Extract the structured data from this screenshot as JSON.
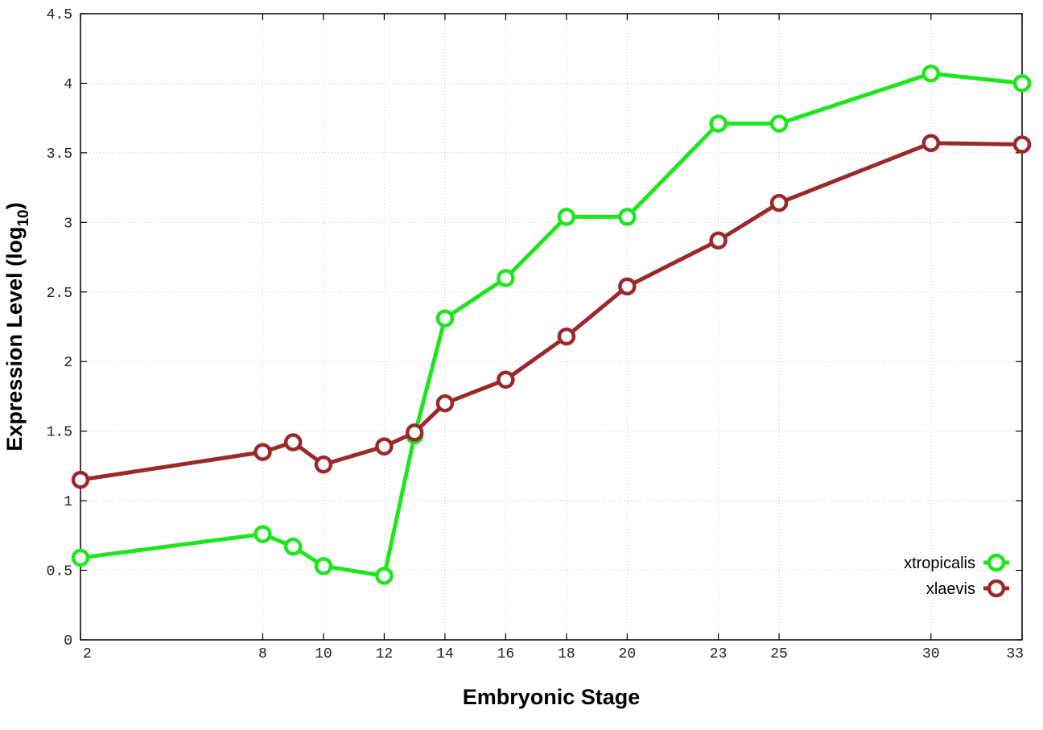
{
  "chart_data": {
    "type": "line",
    "xlabel": "Embryonic Stage",
    "ylabel": "Expression Level (log",
    "ylabel_sub": "10",
    "ylabel_close": ")",
    "xlim": [
      2,
      33
    ],
    "ylim": [
      0,
      4.5
    ],
    "xticks": [
      2,
      8,
      10,
      12,
      14,
      16,
      18,
      20,
      23,
      25,
      30,
      33
    ],
    "yticks": [
      0,
      0.5,
      1,
      1.5,
      2,
      2.5,
      3,
      3.5,
      4,
      4.5
    ],
    "ytick_labels": [
      "0",
      "0.5",
      "1",
      "1.5",
      "2",
      "2.5",
      "3",
      "3.5",
      "4",
      "4.5"
    ],
    "grid": true,
    "legend_position": "bottom-right",
    "series": [
      {
        "name": "xtropicalis",
        "color": "#1fe51f",
        "x": [
          2,
          8,
          9,
          10,
          12,
          13,
          14,
          16,
          18,
          20,
          23,
          25,
          30,
          33
        ],
        "y": [
          0.59,
          0.76,
          0.67,
          0.53,
          0.46,
          1.47,
          2.31,
          2.6,
          3.04,
          3.04,
          3.71,
          3.71,
          4.07,
          4.0
        ]
      },
      {
        "name": "xlaevis",
        "color": "#9a2a2a",
        "x": [
          2,
          8,
          9,
          10,
          12,
          13,
          14,
          16,
          18,
          20,
          23,
          25,
          30,
          33
        ],
        "y": [
          1.15,
          1.35,
          1.42,
          1.26,
          1.39,
          1.49,
          1.7,
          1.87,
          2.18,
          2.54,
          2.87,
          3.14,
          3.57,
          3.56
        ]
      }
    ]
  }
}
